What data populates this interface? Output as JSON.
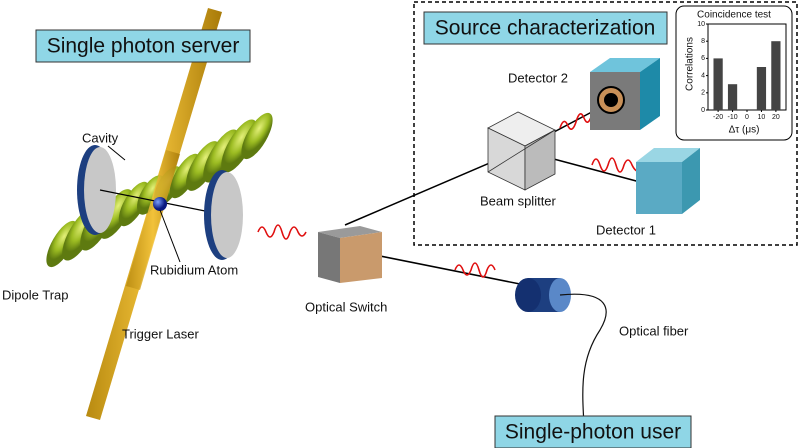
{
  "labels": {
    "server": "Single photon server",
    "source": "Source characterization",
    "user": "Single-photon user",
    "cavity": "Cavity",
    "atom": "Rubidium Atom",
    "dipole_trap": "Dipole Trap",
    "trigger_laser": "Trigger Laser",
    "optical_switch": "Optical Switch",
    "beam_splitter": "Beam splitter",
    "detector2": "Detector 2",
    "detector1": "Detector 1",
    "optical_fiber": "Optical fiber"
  },
  "inset_chart": {
    "type": "bar",
    "title": "Coincidence test",
    "y_label": "Correlations",
    "x_label": "Δτ (μs)",
    "x": [
      -20,
      -10,
      0,
      10,
      20
    ],
    "values": [
      6,
      3,
      0,
      5,
      8
    ],
    "color": "#444444",
    "xlim": [
      -27,
      27
    ],
    "xticks": [
      -20,
      -10,
      0,
      10,
      20
    ],
    "ylim": [
      0,
      10
    ],
    "yticks": [
      0,
      2,
      4,
      6,
      8,
      10
    ]
  }
}
